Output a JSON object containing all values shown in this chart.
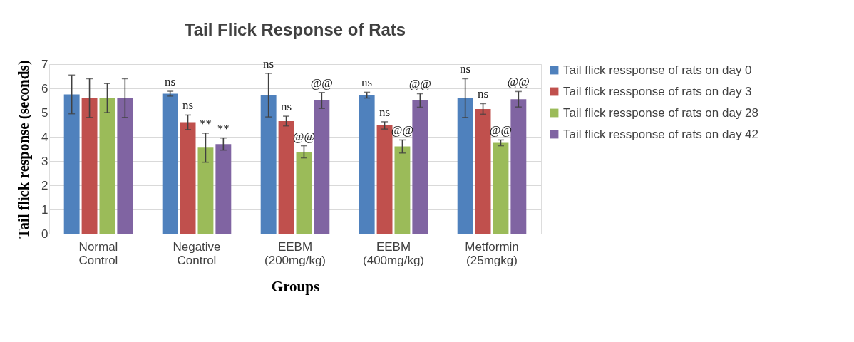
{
  "chart_data": {
    "type": "bar",
    "title": "Tail Flick Response of Rats",
    "xlabel": "Groups",
    "ylabel": "Tail flick response (seconds)",
    "categories": [
      "Normal\nControl",
      "Negative\nControl",
      "EEBM\n(200mg/kg)",
      "EEBM\n(400mg/kg)",
      "Metformin\n(25mgkg)"
    ],
    "series": [
      {
        "name": "Tail flick ressponse of rats on day 0",
        "color": "#4f81bd",
        "values": [
          5.75,
          5.78,
          5.72,
          5.72,
          5.6
        ],
        "errors": [
          0.8,
          0.1,
          0.9,
          0.12,
          0.8
        ]
      },
      {
        "name": "Tail flick ressponse of rats on day 3",
        "color": "#c0504d",
        "values": [
          5.6,
          4.6,
          4.65,
          4.47,
          5.15
        ],
        "errors": [
          0.8,
          0.3,
          0.2,
          0.15,
          0.22
        ]
      },
      {
        "name": "Tail flick ressponse of rats on day 28",
        "color": "#9bbb59",
        "values": [
          5.6,
          3.55,
          3.38,
          3.6,
          3.75
        ],
        "errors": [
          0.6,
          0.6,
          0.25,
          0.27,
          0.12
        ]
      },
      {
        "name": "Tail flick ressponse of rats on day 42",
        "color": "#8064a2",
        "values": [
          5.6,
          3.7,
          5.5,
          5.5,
          5.55
        ],
        "errors": [
          0.8,
          0.25,
          0.33,
          0.28,
          0.32
        ]
      }
    ],
    "annotations": [
      "ns",
      "ns",
      "**",
      "**",
      "ns",
      "ns",
      "@@",
      "@@",
      "ns",
      "ns",
      "@@",
      "@@",
      "ns",
      "ns",
      "@@",
      "@@"
    ],
    "ylim": [
      0,
      7
    ],
    "yticks": [
      0,
      1,
      2,
      3,
      4,
      5,
      6,
      7
    ],
    "grid": "y",
    "legend": "right"
  }
}
